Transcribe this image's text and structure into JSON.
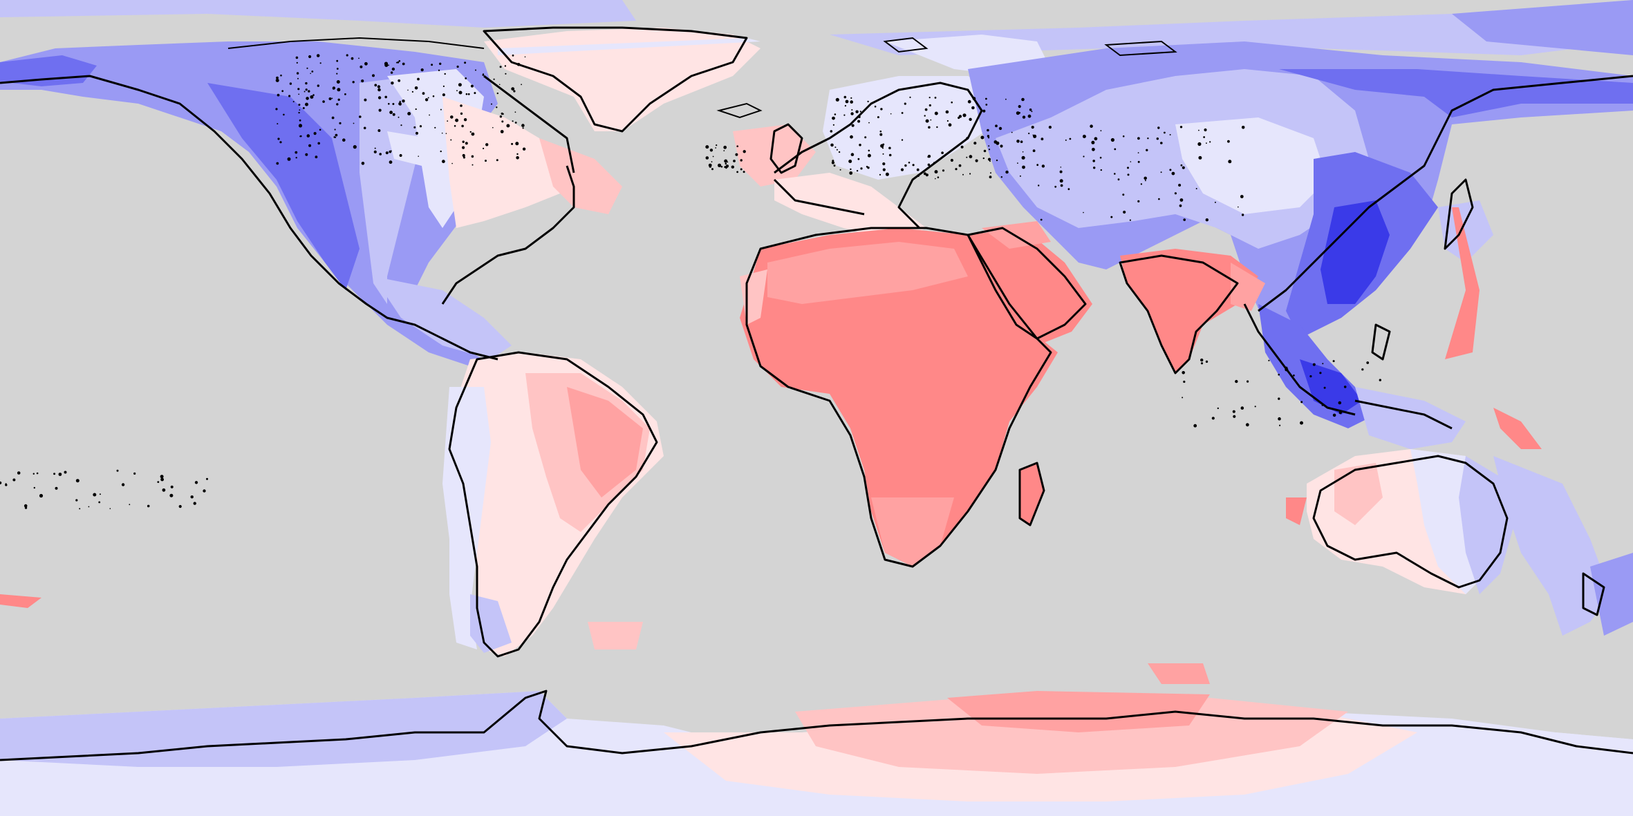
{
  "map": {
    "projection": "equirectangular",
    "background_color": "#d4d4d4",
    "coastline_color": "#000000",
    "color_scale": {
      "blue_darkest": "#3a3ae8",
      "blue_dark": "#6f6ff0",
      "blue_mid": "#9a9af4",
      "blue_light": "#c4c4f8",
      "blue_pale": "#e6e6fc",
      "red_pale": "#ffe4e4",
      "red_light": "#ffc4c4",
      "red_mid": "#ffa2a2",
      "red_strong": "#ff8888"
    },
    "regions": [
      {
        "name": "north-america",
        "tone": "blue"
      },
      {
        "name": "greenland",
        "tone": "red"
      },
      {
        "name": "south-america",
        "tone": "red"
      },
      {
        "name": "europe",
        "tone": "pale"
      },
      {
        "name": "africa",
        "tone": "red"
      },
      {
        "name": "asia",
        "tone": "blue"
      },
      {
        "name": "india",
        "tone": "red"
      },
      {
        "name": "australia",
        "tone": "mixed"
      },
      {
        "name": "antarctica",
        "tone": "mixed"
      }
    ]
  }
}
